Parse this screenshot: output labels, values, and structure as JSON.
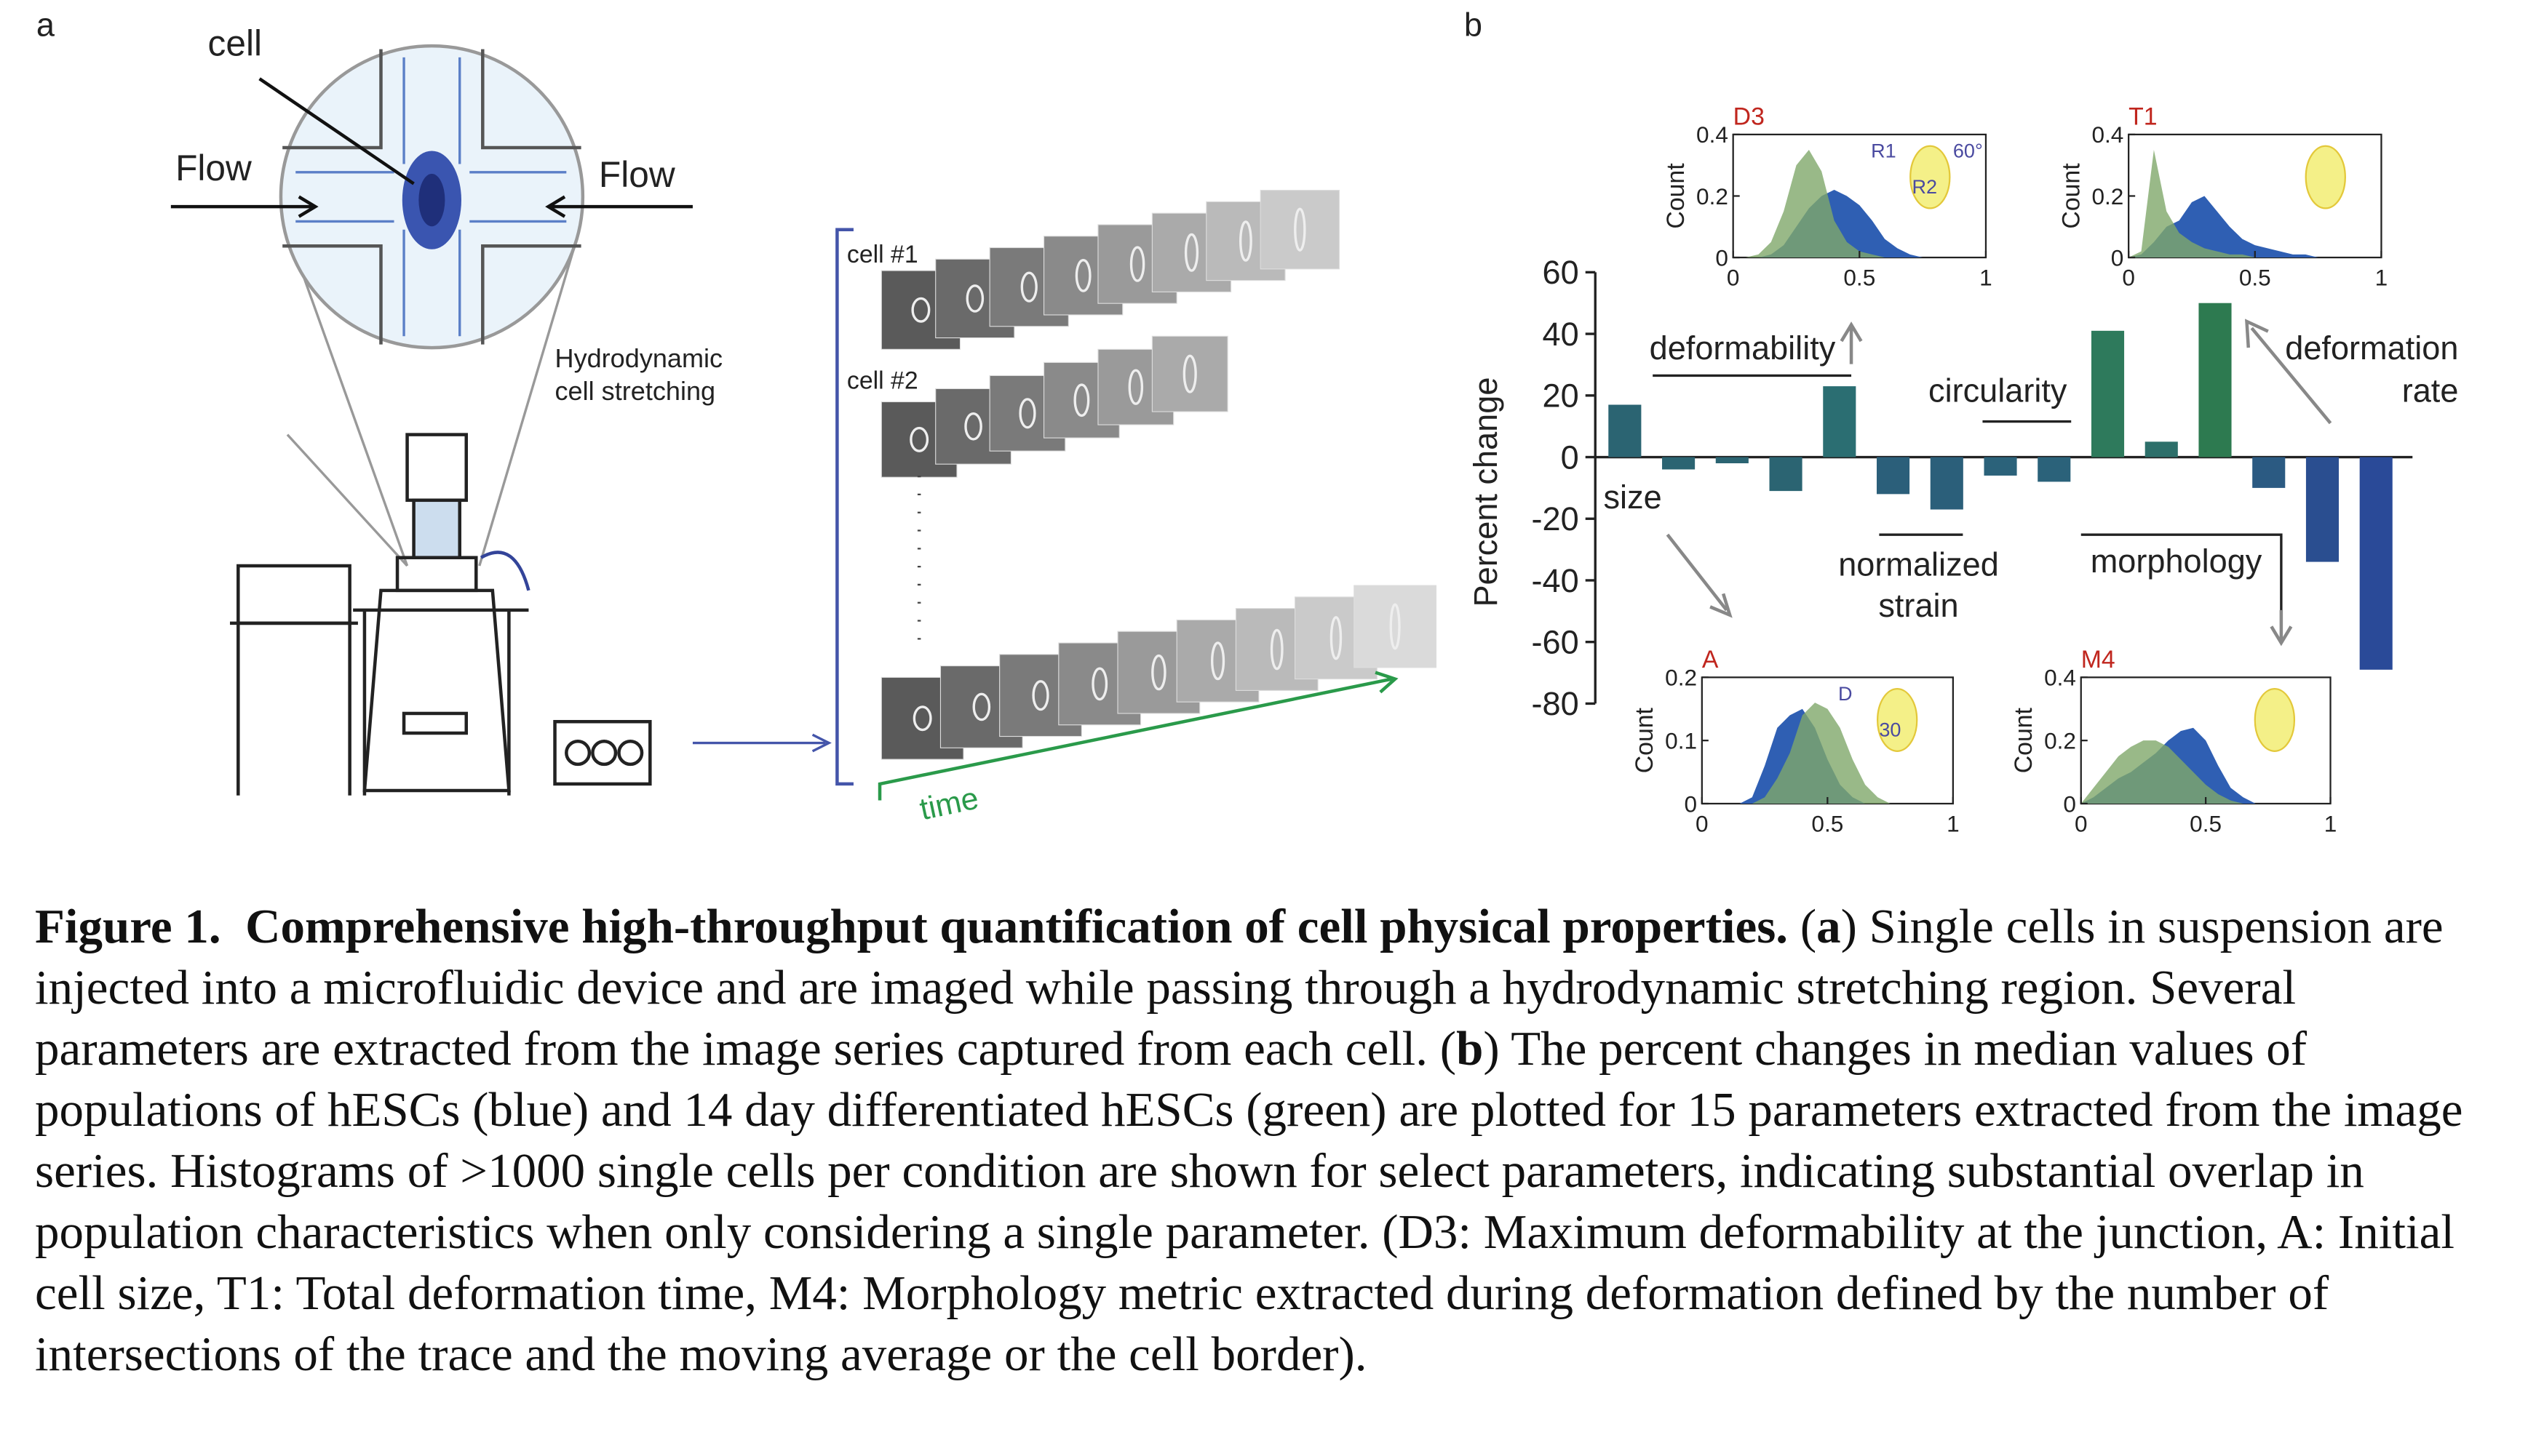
{
  "panel_a": {
    "label": "a",
    "cell": "cell",
    "flow_left": "Flow",
    "flow_right": "Flow",
    "stretch_1": "Hydrodynamic",
    "stretch_2": "cell stretching",
    "cell1": "cell #1",
    "cell2": "cell #2",
    "time": "time"
  },
  "chart_data": {
    "type": "bar",
    "panel_label": "b",
    "y_label": "Percent change",
    "values": [
      17,
      -4,
      -2,
      -11,
      23,
      -12,
      -17,
      -6,
      -8,
      41,
      5,
      50,
      -10,
      -34,
      -69
    ],
    "colors": [
      "#2b6472",
      "#2b6472",
      "#2b6472",
      "#2b6472",
      "#2b6e72",
      "#2b5f7a",
      "#2b5f7a",
      "#2b627a",
      "#2b627a",
      "#2e7a5c",
      "#2d6f6a",
      "#2d7a50",
      "#2b5a82",
      "#2a4e90",
      "#2a4a98"
    ],
    "ylim": [
      -80,
      60
    ],
    "yticks": [
      -80,
      -60,
      -40,
      -20,
      0,
      20,
      40,
      60
    ],
    "annotations": {
      "deformability": "deformability",
      "circularity": "circularity",
      "size": "size",
      "strain_1": "normalized",
      "strain_2": "strain",
      "morphology": "morphology",
      "rate_1": "deformation",
      "rate_2": "rate"
    },
    "insets": [
      {
        "title": "D3",
        "y_label": "Count",
        "ylim": [
          0,
          0.4
        ],
        "yticks": [
          0,
          0.2,
          0.4
        ],
        "xlim": [
          0,
          1
        ],
        "xticks": [
          0,
          0.5,
          1
        ],
        "x": [
          0,
          0.05,
          0.1,
          0.15,
          0.2,
          0.25,
          0.3,
          0.35,
          0.4,
          0.45,
          0.5,
          0.55,
          0.6,
          0.65,
          0.7,
          0.75,
          0.8,
          0.85,
          0.9,
          0.95,
          1
        ],
        "series": [
          {
            "color": "#2f5fb3",
            "values": [
              0,
              0,
              0,
              0.01,
              0.04,
              0.1,
              0.16,
              0.2,
              0.22,
              0.2,
              0.17,
              0.12,
              0.06,
              0.03,
              0.01,
              0,
              0,
              0,
              0,
              0,
              0
            ]
          },
          {
            "color": "#7fa86a",
            "values": [
              0,
              0,
              0.01,
              0.05,
              0.15,
              0.3,
              0.35,
              0.28,
              0.12,
              0.05,
              0.02,
              0.01,
              0,
              0,
              0,
              0,
              0,
              0,
              0,
              0,
              0
            ]
          }
        ],
        "notes": [
          "R1",
          "R2",
          "60°"
        ]
      },
      {
        "title": "T1",
        "y_label": "Count",
        "ylim": [
          0,
          0.4
        ],
        "yticks": [
          0,
          0.2,
          0.4
        ],
        "xlim": [
          0,
          1
        ],
        "xticks": [
          0,
          0.5,
          1
        ],
        "x": [
          0,
          0.05,
          0.1,
          0.15,
          0.2,
          0.25,
          0.3,
          0.35,
          0.4,
          0.45,
          0.5,
          0.55,
          0.6,
          0.65,
          0.7,
          0.75,
          0.8,
          0.85,
          0.9,
          0.95,
          1
        ],
        "series": [
          {
            "color": "#2f5fb3",
            "values": [
              0,
              0.01,
              0.05,
              0.1,
              0.12,
              0.18,
              0.2,
              0.15,
              0.1,
              0.06,
              0.04,
              0.03,
              0.02,
              0.01,
              0.01,
              0,
              0,
              0,
              0,
              0,
              0
            ]
          },
          {
            "color": "#7fa86a",
            "values": [
              0,
              0.02,
              0.35,
              0.15,
              0.08,
              0.05,
              0.03,
              0.02,
              0.01,
              0.01,
              0,
              0,
              0,
              0,
              0,
              0,
              0,
              0,
              0,
              0,
              0
            ]
          }
        ],
        "notes": []
      },
      {
        "title": "A",
        "y_label": "Count",
        "ylim": [
          0,
          0.2
        ],
        "yticks": [
          0,
          0.1,
          0.2
        ],
        "xlim": [
          0,
          1
        ],
        "xticks": [
          0,
          0.5,
          1
        ],
        "x": [
          0,
          0.05,
          0.1,
          0.15,
          0.2,
          0.25,
          0.3,
          0.35,
          0.4,
          0.45,
          0.5,
          0.55,
          0.6,
          0.65,
          0.7,
          0.75,
          0.8,
          0.85,
          0.9,
          0.95,
          1
        ],
        "series": [
          {
            "color": "#2f5fb3",
            "values": [
              0,
              0,
              0,
              0,
              0.01,
              0.06,
              0.12,
              0.14,
              0.15,
              0.12,
              0.07,
              0.03,
              0.01,
              0,
              0,
              0,
              0,
              0,
              0,
              0,
              0
            ]
          },
          {
            "color": "#7fa86a",
            "values": [
              0,
              0,
              0,
              0,
              0,
              0.01,
              0.04,
              0.08,
              0.14,
              0.16,
              0.15,
              0.12,
              0.07,
              0.03,
              0.01,
              0,
              0,
              0,
              0,
              0,
              0
            ]
          }
        ],
        "notes": [
          "D",
          "30"
        ]
      },
      {
        "title": "M4",
        "y_label": "Count",
        "ylim": [
          0,
          0.4
        ],
        "yticks": [
          0,
          0.2,
          0.4
        ],
        "xlim": [
          0,
          1
        ],
        "xticks": [
          0,
          0.5,
          1
        ],
        "x": [
          0,
          0.05,
          0.1,
          0.15,
          0.2,
          0.25,
          0.3,
          0.35,
          0.4,
          0.45,
          0.5,
          0.55,
          0.6,
          0.65,
          0.7,
          0.75,
          0.8,
          0.85,
          0.9,
          0.95,
          1
        ],
        "series": [
          {
            "color": "#2f5fb3",
            "values": [
              0,
              0.02,
              0.05,
              0.08,
              0.1,
              0.13,
              0.16,
              0.2,
              0.23,
              0.24,
              0.2,
              0.12,
              0.05,
              0.02,
              0,
              0,
              0,
              0,
              0,
              0,
              0
            ]
          },
          {
            "color": "#7fa86a",
            "values": [
              0,
              0.05,
              0.1,
              0.15,
              0.18,
              0.2,
              0.2,
              0.18,
              0.14,
              0.1,
              0.06,
              0.03,
              0.01,
              0,
              0,
              0,
              0,
              0,
              0,
              0,
              0
            ]
          }
        ],
        "notes": []
      }
    ]
  },
  "caption": [
    {
      "text": "Figure 1.  Comprehensive high-throughput quantification of cell physical properties.",
      "bold": true
    },
    {
      "text": " (",
      "bold": false
    },
    {
      "text": "a",
      "bold": true
    },
    {
      "text": ") Single cells in suspension are injected into a microfluidic device and are imaged while passing through a hydrodynamic stretching region. Several parameters are extracted from the image series captured from each cell. (",
      "bold": false
    },
    {
      "text": "b",
      "bold": true
    },
    {
      "text": ") The percent changes in median values of populations of hESCs (blue) and 14 day differentiated hESCs (green) are plotted for 15 parameters extracted from the image series. Histograms of >1000 single cells per condition are shown for select parameters, indicating substantial overlap in population characteristics when only considering a single parameter. (D3: Maximum deformability at the junction, A: Initial cell size, T1: Total deformation time, M4: Morphology metric extracted during deformation defined by the number of intersections of the trace and the moving average or the cell border).",
      "bold": false
    }
  ]
}
